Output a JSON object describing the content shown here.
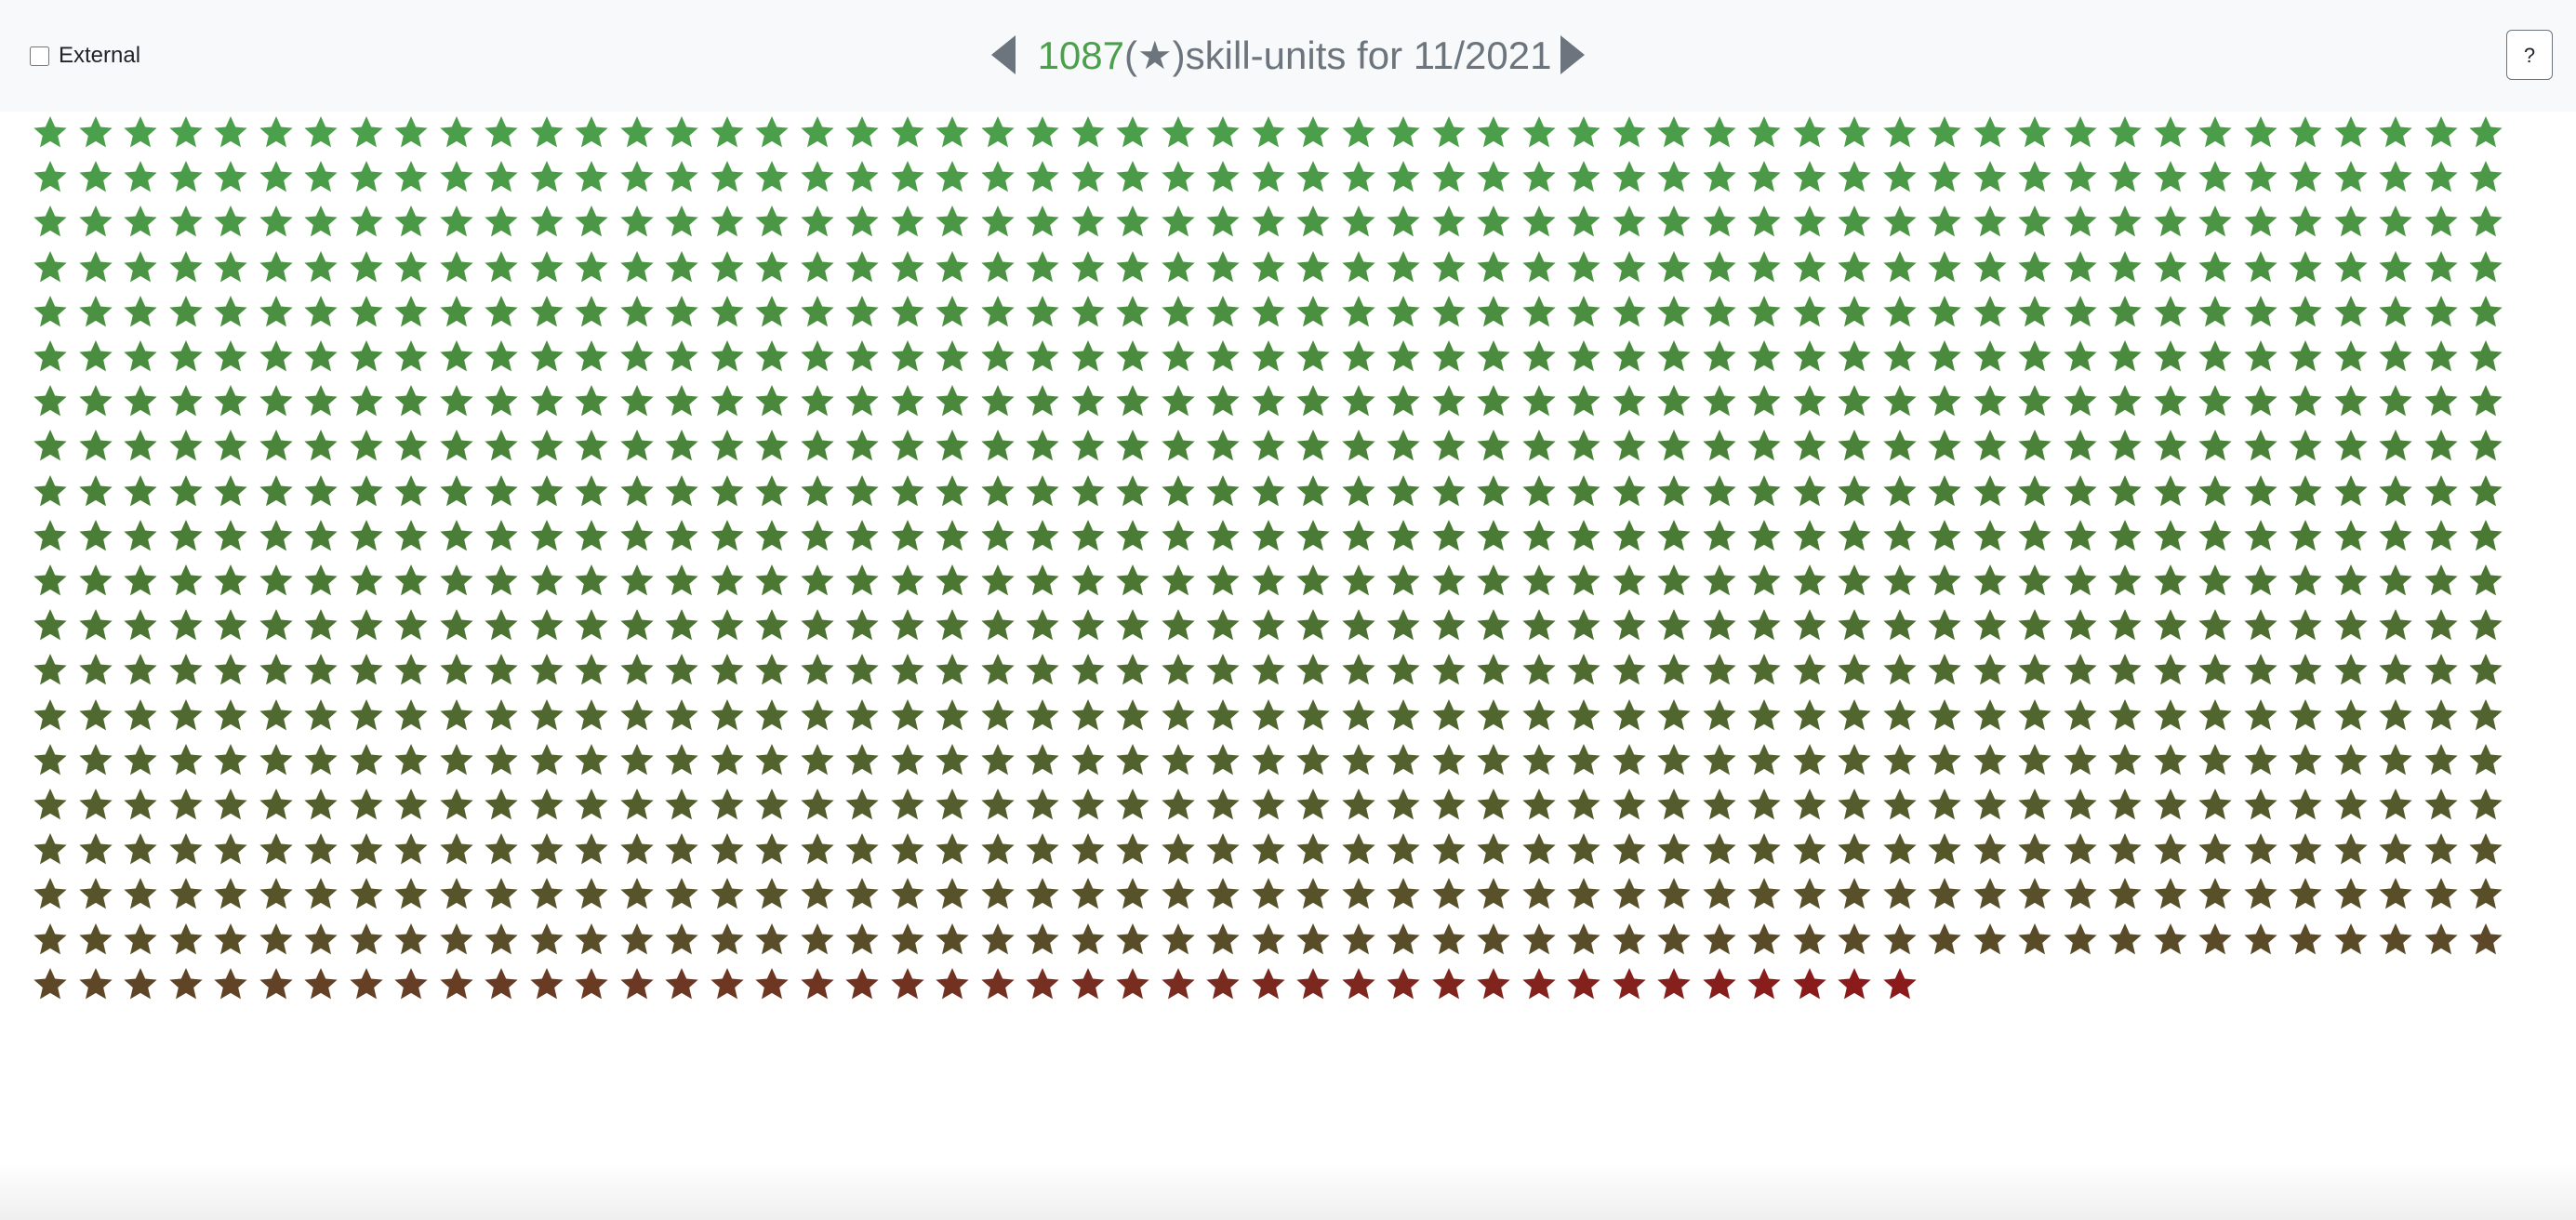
{
  "header": {
    "external_label": "External",
    "external_checked": false,
    "prev_icon": "caret-left-icon",
    "next_icon": "caret-right-icon",
    "count": "1087",
    "paren_open": "(",
    "unit_icon": "star-icon",
    "paren_close": ")",
    "title_suffix": "skill-units for 11/2021",
    "help_label": "?"
  },
  "skill_units": {
    "total": 1087,
    "per_row": 55,
    "unit_icon": "star-icon",
    "color_scale": [
      "#4ba04b",
      "#4a7a34",
      "#5a4a28",
      "#8b1a1a"
    ]
  }
}
